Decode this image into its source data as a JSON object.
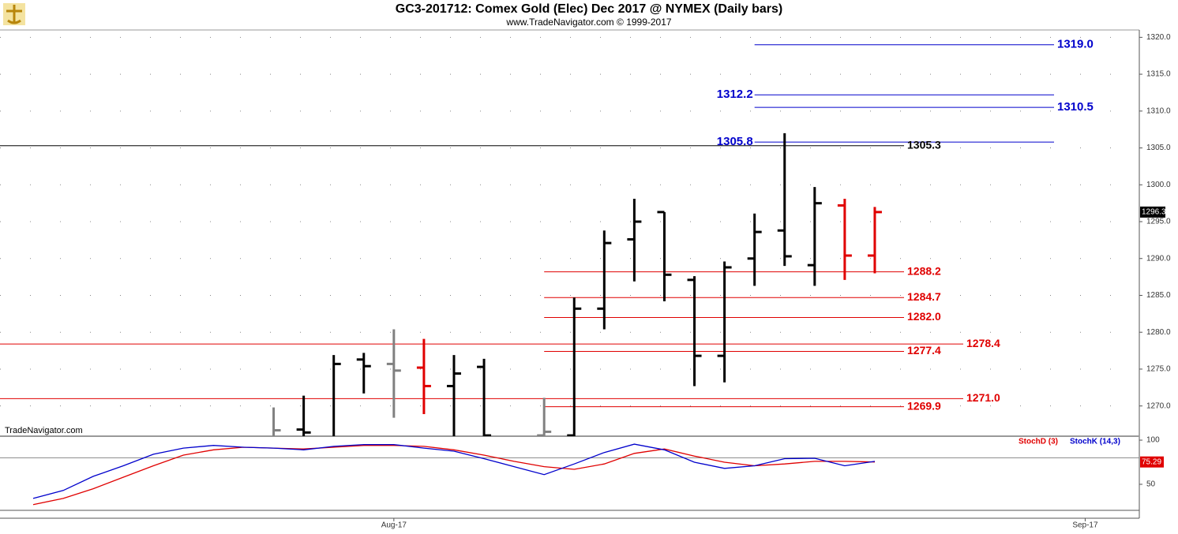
{
  "chart_data": {
    "type": "ohlc",
    "title": "GC3-201712:  Comex Gold (Elec) Dec 2017 @ NYMEX  (Daily bars)",
    "subtitle": "www.TradeNavigator.com © 1999-2017",
    "watermark": "TradeNavigator.com",
    "categories": [
      null,
      null,
      null,
      null,
      null,
      null,
      null,
      null,
      null,
      null,
      null,
      null,
      "Aug-17",
      null,
      null,
      null,
      null,
      null,
      null,
      null,
      null,
      null,
      null,
      null,
      null,
      null,
      null,
      null,
      null,
      null,
      null,
      null,
      null,
      null,
      null,
      "Sep-17"
    ],
    "open": [
      null,
      null,
      null,
      null,
      null,
      null,
      null,
      null,
      1265,
      1266.8,
      1265,
      1276.3,
      1275.7,
      1275.2,
      1272.7,
      1275.3,
      null,
      1266,
      1266,
      1283.2,
      1292.6,
      1296.3,
      1287.1,
      1276.8,
      1290.0,
      1293.8,
      1289.1,
      1297.2,
      1290.4,
      null,
      null,
      null,
      null,
      null,
      null,
      null
    ],
    "high": [
      null,
      null,
      null,
      null,
      null,
      null,
      null,
      null,
      1269.8,
      1271.4,
      1276.9,
      1277.2,
      1280.4,
      1279.1,
      1276.9,
      1276.4,
      null,
      1271.1,
      1284.7,
      1293.8,
      1298.1,
      1296.3,
      1287.6,
      1289.6,
      1296.1,
      1307.0,
      1299.7,
      1298.1,
      1297.0,
      null,
      null,
      null,
      null,
      null,
      null,
      null
    ],
    "low": [
      null,
      null,
      null,
      null,
      null,
      null,
      null,
      null,
      1263,
      1264,
      1264,
      1271.7,
      1268.4,
      1268.9,
      1264,
      1264,
      null,
      1264,
      1264,
      1280.4,
      1286.9,
      1284.2,
      1272.7,
      1273.2,
      1286.3,
      1289.0,
      1286.3,
      1287.1,
      1288.0,
      null,
      null,
      null,
      null,
      null,
      null,
      null
    ],
    "close": [
      null,
      null,
      null,
      null,
      null,
      null,
      null,
      null,
      1266.7,
      1266.4,
      1275.7,
      1275.4,
      1274.8,
      1272.7,
      1274.4,
      1266,
      null,
      1266.5,
      1283.2,
      1292.1,
      1295.0,
      1287.8,
      1276.8,
      1288.8,
      1293.6,
      1290.3,
      1297.5,
      1290.4,
      1296.3,
      null,
      null,
      null,
      null,
      null,
      null,
      null
    ],
    "bar_colors": [
      null,
      null,
      null,
      null,
      null,
      null,
      null,
      null,
      "#808080",
      "#000000",
      "#000000",
      "#000000",
      "#808080",
      "#e00000",
      "#000000",
      "#000000",
      null,
      "#808080",
      "#000000",
      "#000000",
      "#000000",
      "#000000",
      "#000000",
      "#000000",
      "#000000",
      "#000000",
      "#000000",
      "#e00000",
      "#e00000",
      null,
      null,
      null,
      null,
      null,
      null,
      null
    ],
    "ylim": [
      1265.9,
      1321
    ],
    "yticks": [
      {
        "value": 1270,
        "label": "1270.0"
      },
      {
        "value": 1275,
        "label": "1275.0"
      },
      {
        "value": 1280,
        "label": "1280.0"
      },
      {
        "value": 1285,
        "label": "1285.0"
      },
      {
        "value": 1290,
        "label": "1290.0"
      },
      {
        "value": 1295,
        "label": "1295.0"
      },
      {
        "value": 1300,
        "label": "1300.0"
      },
      {
        "value": 1305,
        "label": "1305.0"
      },
      {
        "value": 1310,
        "label": "1310.0"
      },
      {
        "value": 1315,
        "label": "1315.0"
      },
      {
        "value": 1320,
        "label": "1320.0"
      }
    ],
    "grid": true,
    "levels": [
      {
        "value": 1319,
        "label": "1319.0",
        "color": "#0000cc",
        "from": 24,
        "label_side": "right"
      },
      {
        "value": 1312.2,
        "label": "1312.2",
        "color": "#0000cc",
        "from": 24,
        "label_side": "left"
      },
      {
        "value": 1310.5,
        "label": "1310.5",
        "color": "#0000cc",
        "from": 24,
        "label_side": "right"
      },
      {
        "value": 1305.8,
        "label": "1305.8",
        "color": "#0000cc",
        "from": 24,
        "label_side": "left"
      },
      {
        "value": 1305.3,
        "label": "1305.3",
        "color": "#000000",
        "label_side": "right"
      },
      {
        "value": 1288.2,
        "label": "1288.2",
        "color": "#e00000",
        "from": 17,
        "label_side": "right"
      },
      {
        "value": 1284.7,
        "label": "1284.7",
        "color": "#e00000",
        "from": 17,
        "label_side": "right"
      },
      {
        "value": 1282,
        "label": "1282.0",
        "color": "#e00000",
        "from": 17,
        "label_side": "right"
      },
      {
        "value": 1278.4,
        "label": "1278.4",
        "color": "#e00000",
        "label_side": "right"
      },
      {
        "value": 1277.4,
        "label": "1277.4",
        "color": "#e00000",
        "from": 17,
        "label_side": "right"
      },
      {
        "value": 1271,
        "label": "1271.0",
        "color": "#e00000",
        "label_side": "right"
      },
      {
        "value": 1269.9,
        "label": "1269.9",
        "color": "#e00000",
        "from": 17,
        "label_side": "right"
      }
    ],
    "series": [
      {
        "name": "StochD (3)",
        "color": "#e00000",
        "axis": "y2",
        "values": [
          27,
          34,
          45,
          58,
          71,
          83,
          89,
          92,
          91,
          90,
          92,
          94,
          94,
          93,
          89,
          83,
          76,
          70,
          67,
          73,
          85,
          90,
          82,
          75,
          71,
          73,
          76,
          76,
          75.29,
          null,
          null,
          null,
          null,
          null,
          null,
          null
        ]
      },
      {
        "name": "StochK (14,3)",
        "color": "#0000cc",
        "axis": "y2",
        "values": [
          34,
          43,
          59,
          71,
          84,
          91,
          94,
          92,
          91,
          89,
          93,
          95,
          95,
          91,
          87.5,
          79,
          70,
          61,
          73,
          86,
          95.5,
          89,
          75,
          68,
          71,
          79,
          79.5,
          71,
          76,
          null,
          null,
          null,
          null,
          null,
          null,
          null
        ]
      }
    ],
    "y2lim": [
      20.5,
      102.7
    ],
    "y2ticks": [
      50,
      100
    ],
    "y2_reference": 80
  }
}
